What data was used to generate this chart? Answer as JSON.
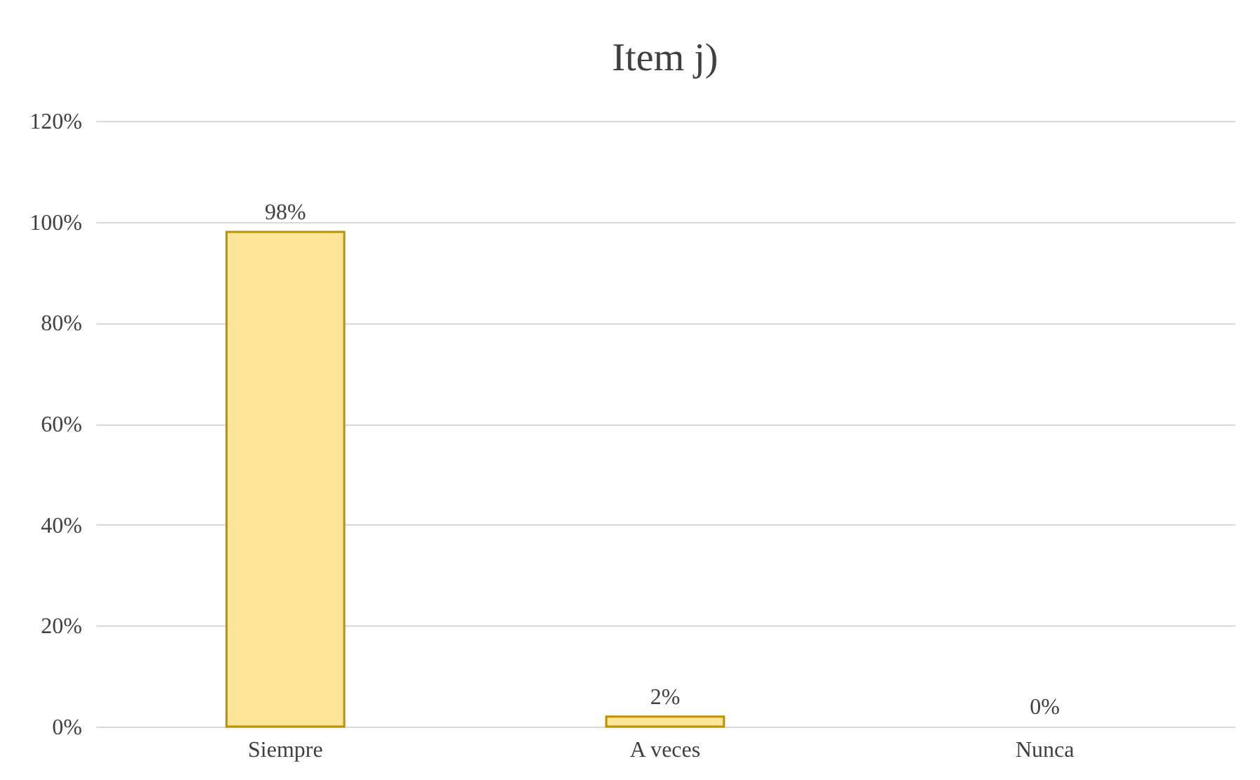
{
  "chart_data": {
    "type": "bar",
    "title": "Item j)",
    "categories": [
      "Siempre",
      "A veces",
      "Nunca"
    ],
    "values": [
      98,
      2,
      0
    ],
    "color": "#ffe699",
    "value_labels": [
      "98%",
      "2%",
      "0%"
    ],
    "ylim": [
      0,
      120
    ],
    "yticks": [
      {
        "value": 0,
        "label": "0%"
      },
      {
        "value": 20,
        "label": "20%"
      },
      {
        "value": 40,
        "label": "40%"
      },
      {
        "value": 60,
        "label": "60%"
      },
      {
        "value": 80,
        "label": "80%"
      },
      {
        "value": 100,
        "label": "100%"
      },
      {
        "value": 120,
        "label": "120%"
      }
    ],
    "grid": "y"
  }
}
